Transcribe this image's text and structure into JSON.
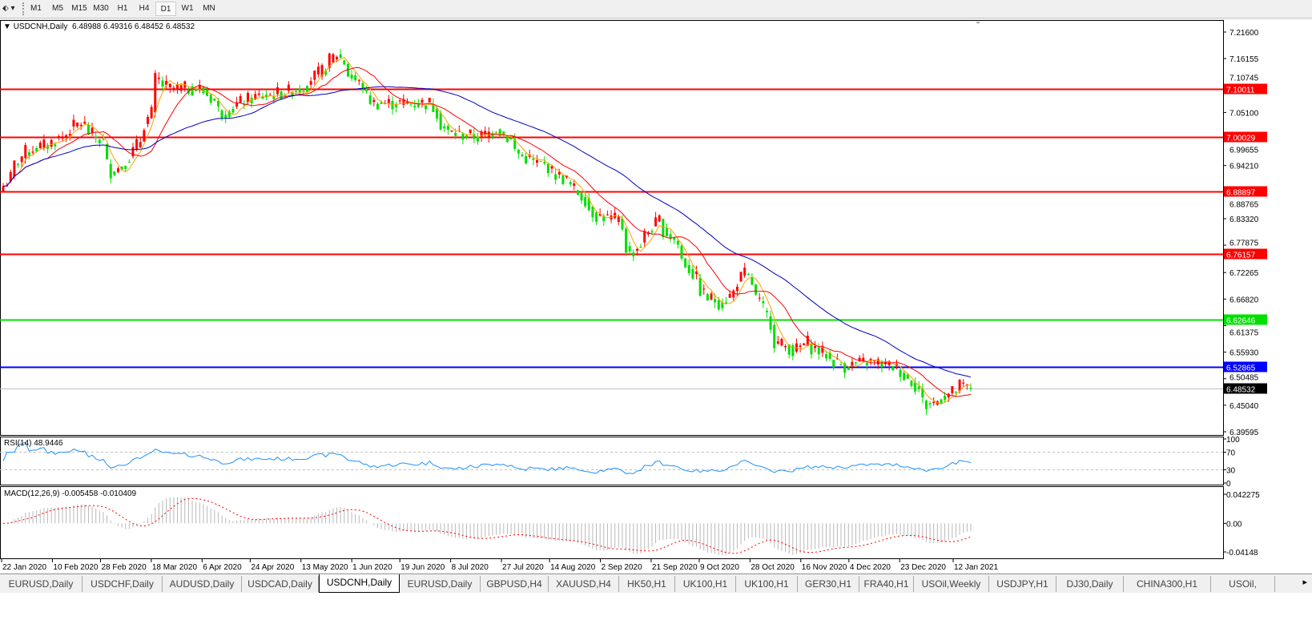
{
  "toolbar": {
    "timeframes": [
      "M1",
      "M5",
      "M15",
      "M30",
      "H1",
      "H4",
      "D1",
      "W1",
      "MN"
    ],
    "active": "D1"
  },
  "header": {
    "symbol": "USDCNH,Daily",
    "open": "6.48988",
    "high": "6.49316",
    "low": "6.48452",
    "close": "6.48532"
  },
  "price_axis": {
    "ticks": [
      "7.21600",
      "7.16155",
      "7.10745",
      "7.05100",
      "6.99655",
      "6.94210",
      "6.88765",
      "6.83320",
      "6.77875",
      "6.72265",
      "6.66820",
      "6.61375",
      "6.55930",
      "6.50485",
      "6.45040",
      "6.39595"
    ],
    "range": [
      6.39595,
      7.216
    ]
  },
  "levels": [
    {
      "price": "7.10011",
      "color": "#ff0000"
    },
    {
      "price": "7.00029",
      "color": "#ff0000"
    },
    {
      "price": "6.88897",
      "color": "#ff0000"
    },
    {
      "price": "6.76157",
      "color": "#ff0000"
    },
    {
      "price": "6.62646",
      "color": "#00e000"
    },
    {
      "price": "6.52865",
      "color": "#0000ff"
    },
    {
      "price": "6.48532",
      "color": "#000000"
    }
  ],
  "rsi": {
    "label": "RSI(14) 48.9446",
    "ticks": [
      "100",
      "70",
      "30",
      "0"
    ]
  },
  "macd": {
    "label": "MACD(12,26,9) -0.005458 -0.010409",
    "ticks": [
      "0.042275",
      "0.00",
      "-0.04148"
    ],
    "range": [
      -0.04148,
      0.042275
    ]
  },
  "time_axis": [
    "22 Jan 2020",
    "10 Feb 2020",
    "28 Feb 2020",
    "18 Mar 2020",
    "6 Apr 2020",
    "24 Apr 2020",
    "13 May 2020",
    "1 Jun 2020",
    "19 Jun 2020",
    "8 Jul 2020",
    "27 Jul 2020",
    "14 Aug 2020",
    "2 Sep 2020",
    "21 Sep 2020",
    "9 Oct 2020",
    "28 Oct 2020",
    "16 Nov 2020",
    "4 Dec 2020",
    "23 Dec 2020",
    "12 Jan 2021"
  ],
  "tabs": [
    "EURUSD,Daily",
    "USDCHF,Daily",
    "AUDUSD,Daily",
    "USDCAD,Daily",
    "USDCNH,Daily",
    "EURUSD,Daily",
    "GBPUSD,H4",
    "XAUUSD,H4",
    "HK50,H1",
    "UK100,H1",
    "UK100,H1",
    "GER30,H1",
    "FRA40,H1",
    "USOil,Weekly",
    "USDJPY,H1",
    "DJ30,Daily",
    "CHINA300,H1",
    "USOil,"
  ],
  "active_tab": "USDCNH,Daily",
  "colors": {
    "bull": "#ff0000",
    "bear": "#00e000",
    "ma_fast": "#ffa000",
    "ma_mid": "#ff0000",
    "ma_slow": "#0000c0",
    "rsi": "#1e90ff"
  },
  "chart_data": {
    "type": "candlestick",
    "symbol": "USDCNH",
    "timeframe": "Daily",
    "approx_closes": [
      [
        "2020-01-22",
        6.9
      ],
      [
        "2020-01-30",
        6.97
      ],
      [
        "2020-02-10",
        6.99
      ],
      [
        "2020-02-20",
        7.03
      ],
      [
        "2020-02-28",
        6.99
      ],
      [
        "2020-03-03",
        6.93
      ],
      [
        "2020-03-09",
        6.95
      ],
      [
        "2020-03-18",
        7.05
      ],
      [
        "2020-03-19",
        7.12
      ],
      [
        "2020-03-25",
        7.1
      ],
      [
        "2020-04-06",
        7.1
      ],
      [
        "2020-04-14",
        7.05
      ],
      [
        "2020-04-24",
        7.08
      ],
      [
        "2020-05-05",
        7.09
      ],
      [
        "2020-05-13",
        7.1
      ],
      [
        "2020-05-20",
        7.13
      ],
      [
        "2020-05-27",
        7.17
      ],
      [
        "2020-06-01",
        7.13
      ],
      [
        "2020-06-10",
        7.07
      ],
      [
        "2020-06-19",
        7.07
      ],
      [
        "2020-07-01",
        7.07
      ],
      [
        "2020-07-08",
        7.01
      ],
      [
        "2020-07-20",
        7.0
      ],
      [
        "2020-07-27",
        7.02
      ],
      [
        "2020-08-05",
        6.96
      ],
      [
        "2020-08-14",
        6.94
      ],
      [
        "2020-08-24",
        6.9
      ],
      [
        "2020-09-02",
        6.84
      ],
      [
        "2020-09-10",
        6.83
      ],
      [
        "2020-09-15",
        6.76
      ],
      [
        "2020-09-21",
        6.8
      ],
      [
        "2020-09-25",
        6.83
      ],
      [
        "2020-10-01",
        6.79
      ],
      [
        "2020-10-09",
        6.71
      ],
      [
        "2020-10-14",
        6.67
      ],
      [
        "2020-10-20",
        6.66
      ],
      [
        "2020-10-28",
        6.72
      ],
      [
        "2020-11-03",
        6.66
      ],
      [
        "2020-11-09",
        6.58
      ],
      [
        "2020-11-16",
        6.56
      ],
      [
        "2020-11-20",
        6.58
      ],
      [
        "2020-12-04",
        6.53
      ],
      [
        "2020-12-14",
        6.54
      ],
      [
        "2020-12-23",
        6.53
      ],
      [
        "2020-12-30",
        6.5
      ],
      [
        "2021-01-05",
        6.45
      ],
      [
        "2021-01-12",
        6.47
      ],
      [
        "2021-01-18",
        6.49
      ],
      [
        "2021-01-21",
        6.48532
      ]
    ]
  }
}
